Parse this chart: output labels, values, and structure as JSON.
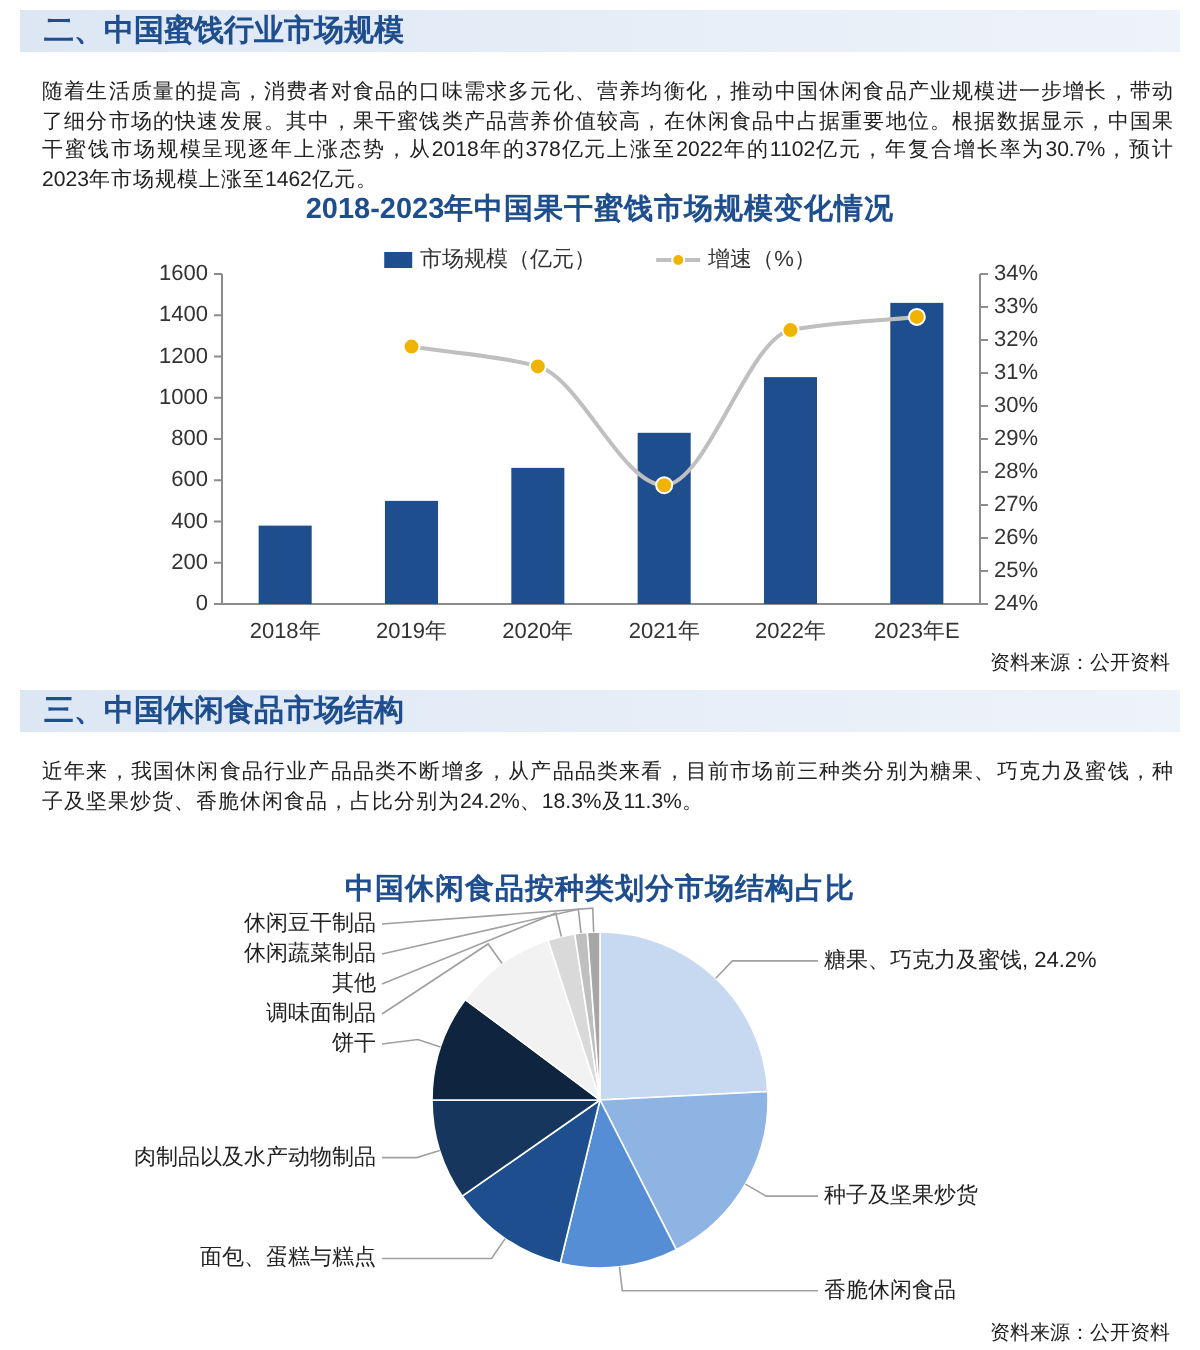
{
  "chart_data": [
    {
      "type": "bar",
      "title": "2018-2023年中国果干蜜饯市场规模变化情况",
      "annotations": [
        "二、中国蜜饯行业市场规模",
        "随着生活质量的提高，消费者对食品的口味需求多元化、营养均衡化，推动中国休闲食品产业规模进一步增长，带动了细分市场的快速发展。其中，果干蜜饯类产品营养价值较高，在休闲食品中占据重要地位。根据数据显示，中国果干蜜饯市场规模呈现逐年上涨态势，从2018年的378亿元上涨至2022年的1102亿元，年复合增长率为30.7%，预计2023年市场规模上涨至1462亿元。",
        "资料来源：公开资料"
      ],
      "categories": [
        "2018年",
        "2019年",
        "2020年",
        "2021年",
        "2022年",
        "2023年E"
      ],
      "series": [
        {
          "name": "市场规模（亿元）",
          "type": "bar",
          "color": "#1f4e8f",
          "values": [
            380,
            500,
            660,
            830,
            1100,
            1460
          ]
        },
        {
          "name": "增速（%）",
          "type": "line",
          "axis": "y2",
          "color": "#bfbfbf",
          "colors": [
            null,
            "#f0b400",
            "#f0b400",
            "#f0b400",
            "#f0b400",
            "#f0b400"
          ],
          "values": [
            null,
            31.8,
            31.2,
            27.6,
            32.3,
            32.7
          ]
        }
      ],
      "ylim": [
        0,
        1600
      ],
      "yticks": [
        0,
        200,
        400,
        600,
        800,
        1000,
        1200,
        1400,
        1600
      ],
      "y2lim": [
        24,
        34
      ],
      "y2ticks": [
        {
          "value": 24,
          "label": "24%"
        },
        {
          "value": 25,
          "label": "25%"
        },
        {
          "value": 26,
          "label": "26%"
        },
        {
          "value": 27,
          "label": "27%"
        },
        {
          "value": 28,
          "label": "28%"
        },
        {
          "value": 29,
          "label": "29%"
        },
        {
          "value": 30,
          "label": "30%"
        },
        {
          "value": 31,
          "label": "31%"
        },
        {
          "value": 32,
          "label": "32%"
        },
        {
          "value": 33,
          "label": "33%"
        },
        {
          "value": 34,
          "label": "34%"
        }
      ],
      "legend": "top",
      "marker": "circle",
      "line_style": "solid"
    },
    {
      "type": "pie",
      "title": "中国休闲食品按种类划分市场结构占比",
      "annotations": [
        "三、中国休闲食品市场结构",
        "近年来，我国休闲食品行业产品品类不断增多，从产品品类来看，目前市场前三种类分别为糖果、巧克力及蜜饯，种子及坚果炒货、香脆休闲食品，占比分别为24.2%、18.3%及11.3%。",
        "资料来源：公开资料"
      ],
      "categories": [
        "糖果、巧克力及蜜饯",
        "种子及坚果炒货",
        "香脆休闲食品",
        "面包、蛋糕与糕点",
        "肉制品以及水产动物制品",
        "饼干",
        "调味面制品",
        "其他",
        "休闲蔬菜制品",
        "休闲豆干制品"
      ],
      "values": [
        24.2,
        18.3,
        11.3,
        11.5,
        9.7,
        10.2,
        9.8,
        2.6,
        1.2,
        1.2
      ],
      "colors": [
        "#c6d9f1",
        "#8eb4e3",
        "#558ed5",
        "#1f4e8f",
        "#17365d",
        "#0f243e",
        "#f2f2f2",
        "#d9d9d9",
        "#bfbfbf",
        "#a6a6a6"
      ],
      "value_labels": [
        "24.2%",
        null,
        null,
        null,
        null,
        null,
        null,
        null,
        null,
        null
      ]
    }
  ]
}
